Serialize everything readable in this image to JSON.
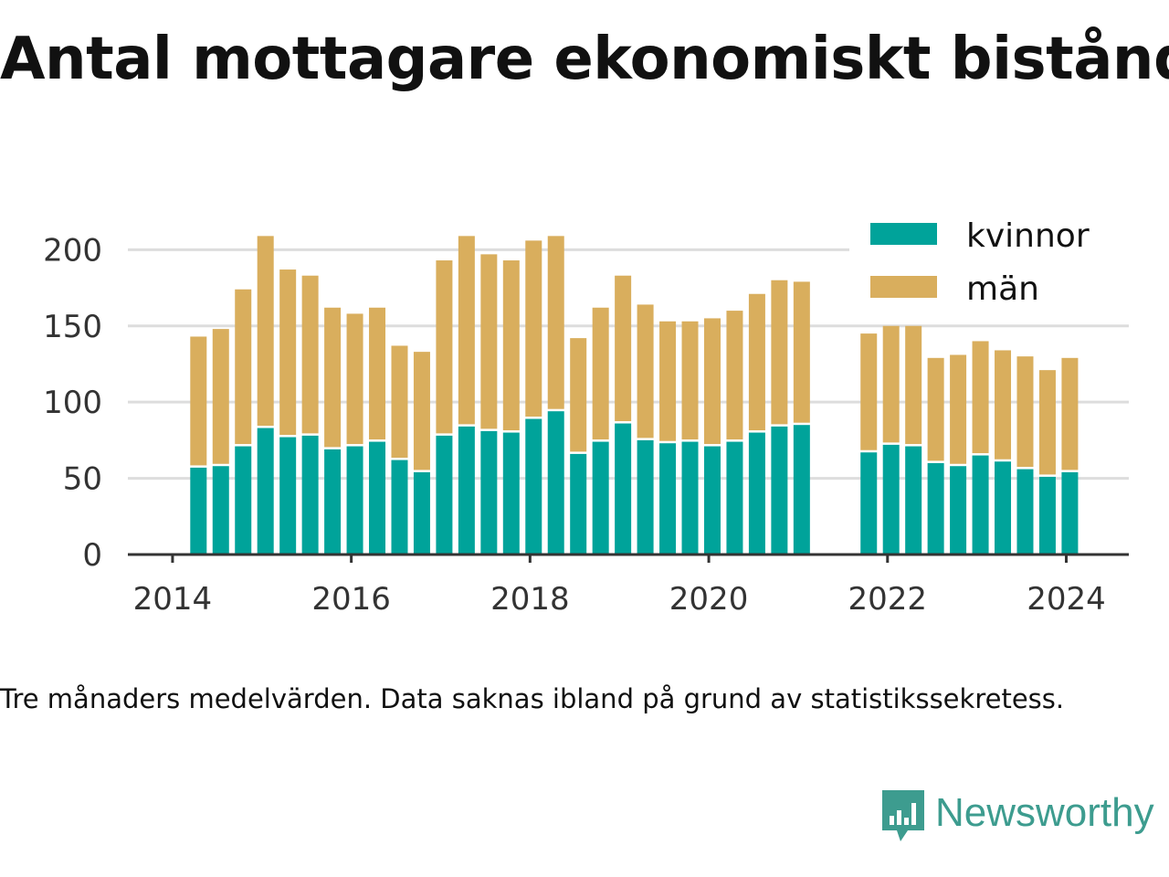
{
  "title": "Antal mottagare ekonomiskt bistånd",
  "caption": "Tre månaders medelvärden. Data saknas ibland på grund av statistikssekretess.",
  "brand": {
    "name": "Newsworthy",
    "icon": "newsworthy-chart-bubble-icon",
    "color": "#3d9c8f"
  },
  "colors": {
    "kvinnor": "#00a39a",
    "man": "#d9ae5d",
    "grid": "#dddddd",
    "axis": "#333333"
  },
  "chart_data": {
    "type": "bar",
    "stacked": true,
    "title": "Antal mottagare ekonomiskt bistånd",
    "xlabel": "",
    "ylabel": "",
    "ylim": [
      0,
      220
    ],
    "xlim": [
      2013.5,
      2024.7
    ],
    "yticks": [
      0,
      50,
      100,
      150,
      200
    ],
    "xticks": [
      "2014",
      "2016",
      "2018",
      "2020",
      "2022",
      "2024"
    ],
    "grid": true,
    "legend": {
      "placement": "top-right",
      "entries": [
        "kvinnor",
        "män"
      ]
    },
    "x": [
      2014.29,
      2014.54,
      2014.79,
      2015.04,
      2015.29,
      2015.54,
      2015.79,
      2016.04,
      2016.29,
      2016.54,
      2016.79,
      2017.04,
      2017.29,
      2017.54,
      2017.79,
      2018.04,
      2018.29,
      2018.54,
      2018.79,
      2019.04,
      2019.29,
      2019.54,
      2019.79,
      2020.04,
      2020.29,
      2020.54,
      2020.79,
      2021.04,
      2021.79,
      2022.04,
      2022.29,
      2022.54,
      2022.79,
      2023.04,
      2023.29,
      2023.54,
      2023.79,
      2024.04
    ],
    "series": [
      {
        "name": "kvinnor",
        "values": [
          57,
          58,
          71,
          83,
          77,
          78,
          69,
          71,
          74,
          62,
          54,
          78,
          84,
          81,
          80,
          89,
          94,
          66,
          74,
          86,
          75,
          73,
          74,
          71,
          74,
          80,
          84,
          85,
          67,
          72,
          71,
          60,
          58,
          65,
          61,
          56,
          51,
          54
        ]
      },
      {
        "name": "män",
        "values": [
          86,
          90,
          103,
          126,
          110,
          105,
          93,
          87,
          88,
          75,
          79,
          115,
          125,
          116,
          113,
          117,
          115,
          76,
          88,
          97,
          89,
          80,
          79,
          84,
          86,
          91,
          96,
          94,
          78,
          78,
          79,
          69,
          73,
          75,
          73,
          74,
          70,
          75
        ]
      }
    ]
  }
}
